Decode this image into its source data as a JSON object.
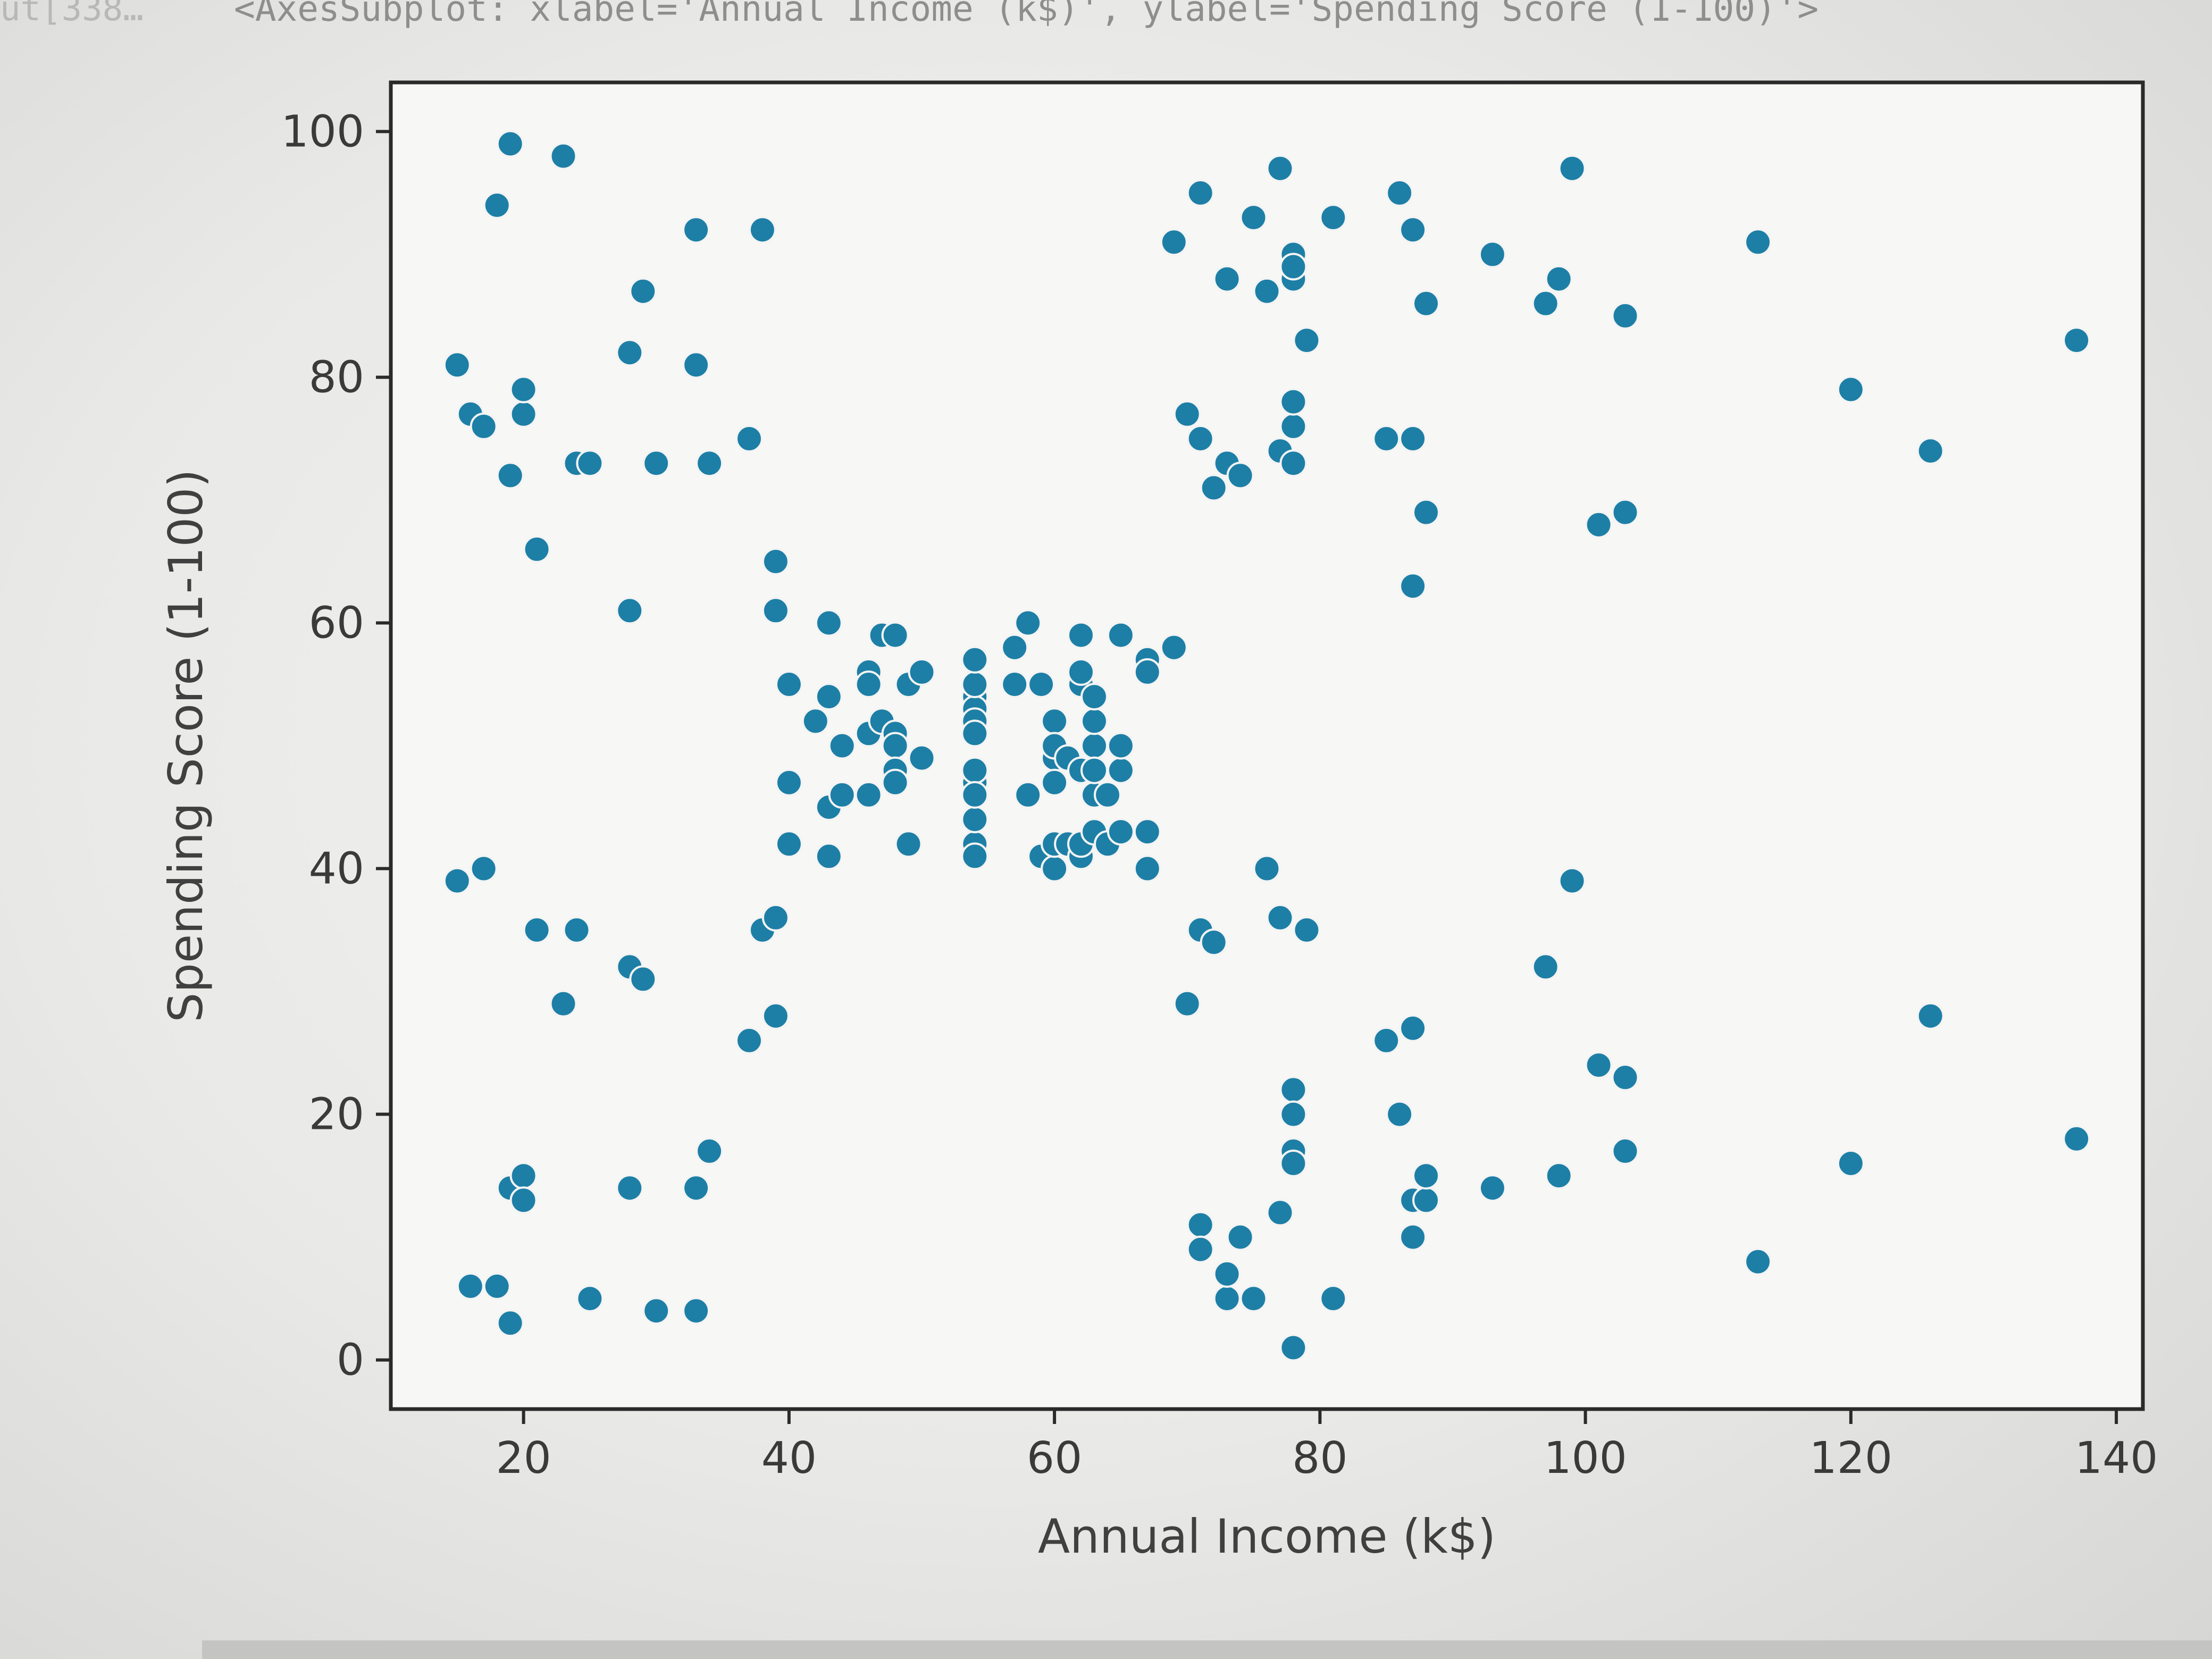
{
  "cell": {
    "prompt": "ut[338…",
    "output_repr": "<AxesSubplot: xlabel='Annual Income (k$)', ylabel='Spending Score (1-100)'>"
  },
  "colors": {
    "marker": "#1d7fa6",
    "marker_edge": "#f4f4f4",
    "axes_face": "#f7f7f5",
    "spine": "#2a2a2a"
  },
  "chart_data": {
    "type": "scatter",
    "title": "",
    "xlabel": "Annual Income (k$)",
    "ylabel": "Spending Score (1-100)",
    "xlim": [
      10,
      142
    ],
    "ylim": [
      -4,
      104
    ],
    "xticks": [
      20,
      40,
      60,
      80,
      100,
      120,
      140
    ],
    "yticks": [
      0,
      20,
      40,
      60,
      80,
      100
    ],
    "grid": false,
    "legend": "none",
    "series": [
      {
        "points": [
          [
            15,
            39
          ],
          [
            15,
            81
          ],
          [
            16,
            6
          ],
          [
            16,
            77
          ],
          [
            17,
            40
          ],
          [
            17,
            76
          ],
          [
            18,
            6
          ],
          [
            18,
            94
          ],
          [
            19,
            3
          ],
          [
            19,
            72
          ],
          [
            19,
            14
          ],
          [
            19,
            99
          ],
          [
            20,
            15
          ],
          [
            20,
            77
          ],
          [
            20,
            13
          ],
          [
            20,
            79
          ],
          [
            21,
            35
          ],
          [
            21,
            66
          ],
          [
            23,
            29
          ],
          [
            23,
            98
          ],
          [
            24,
            35
          ],
          [
            24,
            73
          ],
          [
            25,
            5
          ],
          [
            25,
            73
          ],
          [
            28,
            14
          ],
          [
            28,
            82
          ],
          [
            28,
            32
          ],
          [
            28,
            61
          ],
          [
            29,
            31
          ],
          [
            29,
            87
          ],
          [
            30,
            4
          ],
          [
            30,
            73
          ],
          [
            33,
            4
          ],
          [
            33,
            92
          ],
          [
            33,
            14
          ],
          [
            33,
            81
          ],
          [
            34,
            17
          ],
          [
            34,
            73
          ],
          [
            37,
            26
          ],
          [
            37,
            75
          ],
          [
            38,
            35
          ],
          [
            38,
            92
          ],
          [
            39,
            36
          ],
          [
            39,
            61
          ],
          [
            39,
            28
          ],
          [
            39,
            65
          ],
          [
            40,
            55
          ],
          [
            40,
            47
          ],
          [
            40,
            42
          ],
          [
            42,
            52
          ],
          [
            43,
            60
          ],
          [
            43,
            54
          ],
          [
            43,
            45
          ],
          [
            43,
            41
          ],
          [
            44,
            50
          ],
          [
            44,
            46
          ],
          [
            46,
            51
          ],
          [
            46,
            46
          ],
          [
            46,
            56
          ],
          [
            46,
            55
          ],
          [
            47,
            52
          ],
          [
            47,
            59
          ],
          [
            48,
            51
          ],
          [
            48,
            59
          ],
          [
            48,
            50
          ],
          [
            48,
            48
          ],
          [
            48,
            47
          ],
          [
            49,
            55
          ],
          [
            49,
            42
          ],
          [
            50,
            49
          ],
          [
            50,
            56
          ],
          [
            54,
            47
          ],
          [
            54,
            54
          ],
          [
            54,
            53
          ],
          [
            54,
            48
          ],
          [
            54,
            52
          ],
          [
            54,
            42
          ],
          [
            54,
            51
          ],
          [
            54,
            55
          ],
          [
            54,
            41
          ],
          [
            54,
            44
          ],
          [
            54,
            57
          ],
          [
            54,
            46
          ],
          [
            57,
            58
          ],
          [
            57,
            55
          ],
          [
            58,
            60
          ],
          [
            58,
            46
          ],
          [
            59,
            55
          ],
          [
            59,
            41
          ],
          [
            60,
            49
          ],
          [
            60,
            40
          ],
          [
            60,
            42
          ],
          [
            60,
            52
          ],
          [
            60,
            47
          ],
          [
            60,
            50
          ],
          [
            61,
            42
          ],
          [
            61,
            49
          ],
          [
            62,
            41
          ],
          [
            62,
            48
          ],
          [
            62,
            59
          ],
          [
            62,
            55
          ],
          [
            62,
            56
          ],
          [
            62,
            42
          ],
          [
            63,
            50
          ],
          [
            63,
            46
          ],
          [
            63,
            43
          ],
          [
            63,
            48
          ],
          [
            63,
            52
          ],
          [
            63,
            54
          ],
          [
            64,
            42
          ],
          [
            64,
            46
          ],
          [
            65,
            48
          ],
          [
            65,
            50
          ],
          [
            65,
            43
          ],
          [
            65,
            59
          ],
          [
            67,
            43
          ],
          [
            67,
            57
          ],
          [
            67,
            56
          ],
          [
            67,
            40
          ],
          [
            69,
            58
          ],
          [
            69,
            91
          ],
          [
            70,
            29
          ],
          [
            70,
            77
          ],
          [
            71,
            35
          ],
          [
            71,
            95
          ],
          [
            71,
            11
          ],
          [
            71,
            75
          ],
          [
            71,
            9
          ],
          [
            72,
            34
          ],
          [
            72,
            71
          ],
          [
            73,
            5
          ],
          [
            73,
            88
          ],
          [
            73,
            7
          ],
          [
            73,
            73
          ],
          [
            74,
            10
          ],
          [
            74,
            72
          ],
          [
            75,
            5
          ],
          [
            75,
            93
          ],
          [
            76,
            40
          ],
          [
            76,
            87
          ],
          [
            77,
            12
          ],
          [
            77,
            97
          ],
          [
            77,
            36
          ],
          [
            77,
            74
          ],
          [
            78,
            22
          ],
          [
            78,
            90
          ],
          [
            78,
            17
          ],
          [
            78,
            88
          ],
          [
            78,
            20
          ],
          [
            78,
            76
          ],
          [
            78,
            16
          ],
          [
            78,
            89
          ],
          [
            78,
            1
          ],
          [
            78,
            78
          ],
          [
            78,
            1
          ],
          [
            78,
            73
          ],
          [
            79,
            35
          ],
          [
            79,
            83
          ],
          [
            81,
            5
          ],
          [
            81,
            93
          ],
          [
            85,
            26
          ],
          [
            85,
            75
          ],
          [
            86,
            20
          ],
          [
            86,
            95
          ],
          [
            87,
            27
          ],
          [
            87,
            63
          ],
          [
            87,
            13
          ],
          [
            87,
            75
          ],
          [
            87,
            10
          ],
          [
            87,
            92
          ],
          [
            88,
            13
          ],
          [
            88,
            86
          ],
          [
            88,
            15
          ],
          [
            88,
            69
          ],
          [
            93,
            14
          ],
          [
            93,
            90
          ],
          [
            97,
            32
          ],
          [
            97,
            86
          ],
          [
            98,
            15
          ],
          [
            98,
            88
          ],
          [
            99,
            39
          ],
          [
            99,
            97
          ],
          [
            101,
            24
          ],
          [
            101,
            68
          ],
          [
            103,
            17
          ],
          [
            103,
            85
          ],
          [
            103,
            23
          ],
          [
            103,
            69
          ],
          [
            113,
            8
          ],
          [
            113,
            91
          ],
          [
            120,
            16
          ],
          [
            120,
            79
          ],
          [
            126,
            28
          ],
          [
            126,
            74
          ],
          [
            137,
            18
          ],
          [
            137,
            83
          ]
        ]
      }
    ]
  }
}
